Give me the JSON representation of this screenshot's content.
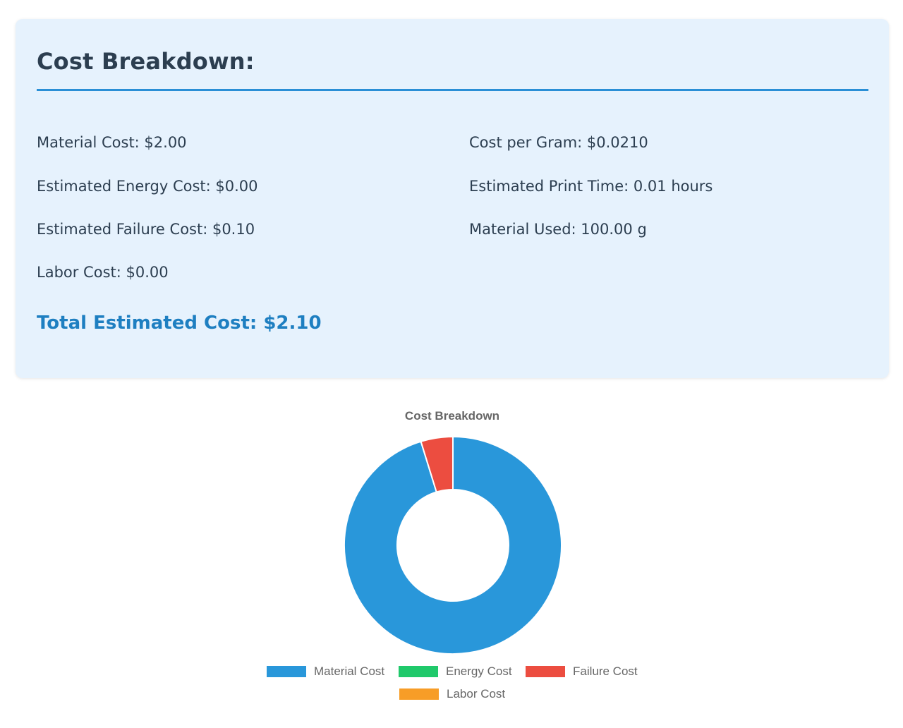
{
  "summary": {
    "title": "Cost Breakdown:",
    "left_items": [
      "Material Cost: $2.00",
      "Estimated Energy Cost: $0.00",
      "Estimated Failure Cost: $0.10",
      "Labor Cost: $0.00"
    ],
    "right_items": [
      "Cost per Gram: $0.0210",
      "Estimated Print Time: 0.01 hours",
      "Material Used: 100.00 g"
    ],
    "total": "Total Estimated Cost: $2.10"
  },
  "chart_data": {
    "type": "pie",
    "variant": "doughnut",
    "title": "Cost Breakdown",
    "categories": [
      "Material Cost",
      "Energy Cost",
      "Failure Cost",
      "Labor Cost"
    ],
    "values": [
      2.0,
      0.0,
      0.1,
      0.0
    ],
    "colors": [
      "#2997da",
      "#20c96b",
      "#ec4d40",
      "#f79d27"
    ],
    "legend": "bottom"
  }
}
